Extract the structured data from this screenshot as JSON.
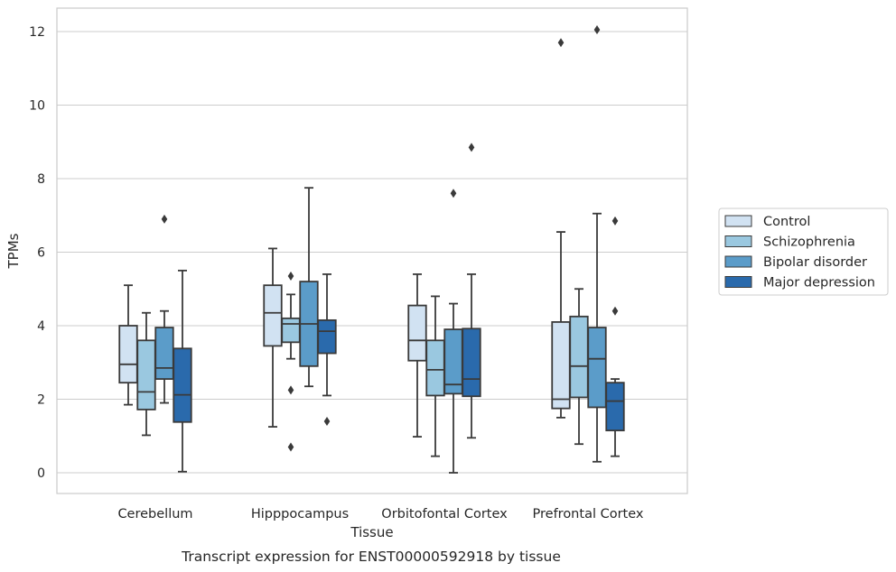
{
  "chart_data": {
    "type": "box",
    "title": "Transcript expression for ENST00000592918 by tissue",
    "xlabel": "Tissue",
    "ylabel": "TPMs",
    "ylim": [
      -0.6,
      12.7
    ],
    "yticks": [
      0,
      2,
      4,
      6,
      8,
      10,
      12
    ],
    "grid": true,
    "legend_position": "right, outside plot",
    "categories": [
      "Cerebellum",
      "Hipppocampus",
      "Orbitofontal Cortex",
      "Prefrontal Cortex"
    ],
    "series": [
      {
        "name": "Control",
        "color": "#d1e2f2",
        "boxes": [
          {
            "whisker_low": 1.85,
            "q1": 2.45,
            "median": 2.95,
            "q3": 4.0,
            "whisker_high": 5.1,
            "outliers": []
          },
          {
            "whisker_low": 1.25,
            "q1": 3.45,
            "median": 4.35,
            "q3": 5.1,
            "whisker_high": 6.1,
            "outliers": []
          },
          {
            "whisker_low": 0.98,
            "q1": 3.05,
            "median": 3.6,
            "q3": 4.55,
            "whisker_high": 5.4,
            "outliers": []
          },
          {
            "whisker_low": 1.5,
            "q1": 1.75,
            "median": 2.0,
            "q3": 4.1,
            "whisker_high": 6.55,
            "outliers": [
              11.7
            ]
          }
        ]
      },
      {
        "name": "Schizophrenia",
        "color": "#9ac8e0",
        "boxes": [
          {
            "whisker_low": 1.02,
            "q1": 1.72,
            "median": 2.2,
            "q3": 3.6,
            "whisker_high": 4.35,
            "outliers": []
          },
          {
            "whisker_low": 3.1,
            "q1": 3.55,
            "median": 4.05,
            "q3": 4.2,
            "whisker_high": 4.85,
            "outliers": [
              5.35,
              2.25,
              0.7
            ]
          },
          {
            "whisker_low": 0.45,
            "q1": 2.1,
            "median": 2.8,
            "q3": 3.6,
            "whisker_high": 4.8,
            "outliers": []
          },
          {
            "whisker_low": 0.78,
            "q1": 2.05,
            "median": 2.9,
            "q3": 4.25,
            "whisker_high": 5.0,
            "outliers": []
          }
        ]
      },
      {
        "name": "Bipolar disorder",
        "color": "#5b9cc9",
        "boxes": [
          {
            "whisker_low": 1.9,
            "q1": 2.55,
            "median": 2.85,
            "q3": 3.95,
            "whisker_high": 4.4,
            "outliers": [
              6.9
            ]
          },
          {
            "whisker_low": 2.35,
            "q1": 2.9,
            "median": 4.05,
            "q3": 5.2,
            "whisker_high": 7.75,
            "outliers": []
          },
          {
            "whisker_low": 0.0,
            "q1": 2.15,
            "median": 2.4,
            "q3": 3.9,
            "whisker_high": 4.6,
            "outliers": [
              7.6
            ]
          },
          {
            "whisker_low": 0.3,
            "q1": 1.78,
            "median": 3.1,
            "q3": 3.95,
            "whisker_high": 7.05,
            "outliers": [
              12.05
            ]
          }
        ]
      },
      {
        "name": "Major depression",
        "color": "#2a6aac",
        "boxes": [
          {
            "whisker_low": 0.03,
            "q1": 1.38,
            "median": 2.12,
            "q3": 3.38,
            "whisker_high": 5.5,
            "outliers": []
          },
          {
            "whisker_low": 2.1,
            "q1": 3.25,
            "median": 3.85,
            "q3": 4.15,
            "whisker_high": 5.4,
            "outliers": [
              1.4
            ]
          },
          {
            "whisker_low": 0.95,
            "q1": 2.08,
            "median": 2.55,
            "q3": 3.92,
            "whisker_high": 5.4,
            "outliers": [
              8.85
            ]
          },
          {
            "whisker_low": 0.45,
            "q1": 1.15,
            "median": 1.95,
            "q3": 2.45,
            "whisker_high": 2.55,
            "outliers": [
              6.85,
              4.4
            ]
          }
        ]
      }
    ]
  }
}
